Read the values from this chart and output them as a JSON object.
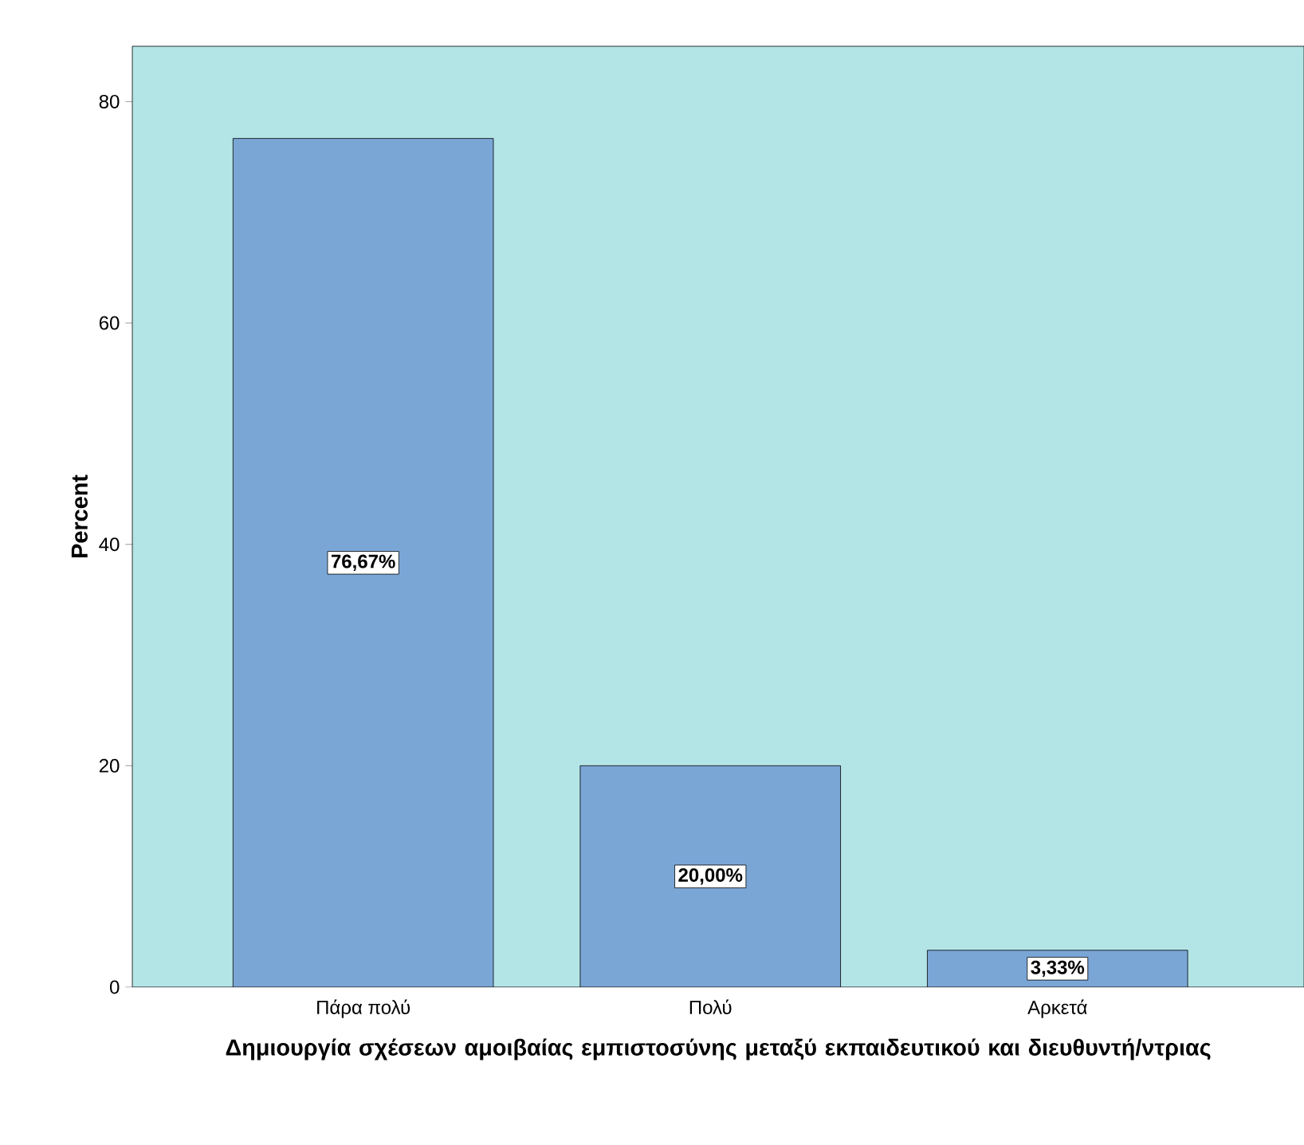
{
  "chart_data": {
    "type": "bar",
    "xlabel": "Δημιουργία σχέσεων αμοιβαίας εμπιστοσύνης μεταξύ εκπαιδευτικού και διευθυντή/ντριας",
    "ylabel": "Percent",
    "categories": [
      "Πάρα πολύ",
      "Πολύ",
      "Αρκετά"
    ],
    "values": [
      76.67,
      20.0,
      3.33
    ],
    "value_labels": [
      "76,67%",
      "20,00%",
      "3,33%"
    ],
    "color": "#7aa6d6",
    "ylim": [
      0,
      85
    ],
    "yticks": [
      0,
      20,
      40,
      60,
      80
    ],
    "grid": false
  }
}
